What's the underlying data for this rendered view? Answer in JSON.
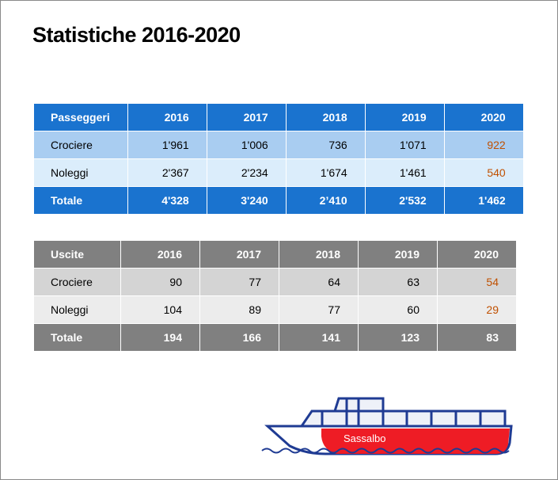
{
  "title": "Statistiche 2016-2020",
  "years": [
    "2016",
    "2017",
    "2018",
    "2019",
    "2020"
  ],
  "passengers": {
    "header": "Passeggeri",
    "rows": [
      {
        "label": "Crociere",
        "values": [
          "1'961",
          "1'006",
          "736",
          "1'071",
          "922"
        ]
      },
      {
        "label": "Noleggi",
        "values": [
          "2'367",
          "2'234",
          "1'674",
          "1'461",
          "540"
        ]
      }
    ],
    "total": {
      "label": "Totale",
      "values": [
        "4'328",
        "3'240",
        "2’410",
        "2'532",
        "1'462"
      ]
    }
  },
  "trips": {
    "header": "Uscite",
    "rows": [
      {
        "label": "Crociere",
        "values": [
          "90",
          "77",
          "64",
          "63",
          "54"
        ]
      },
      {
        "label": "Noleggi",
        "values": [
          "104",
          "89",
          "77",
          "60",
          "29"
        ]
      }
    ],
    "total": {
      "label": "Totale",
      "values": [
        "194",
        "166",
        "141",
        "123",
        "83"
      ]
    }
  },
  "boat_name": "Sassalbo",
  "colors": {
    "blue": "#1a73cf",
    "gray": "#808080",
    "highlight": "#c05000",
    "hull": "#ee1c25",
    "outline": "#1f3b93"
  }
}
